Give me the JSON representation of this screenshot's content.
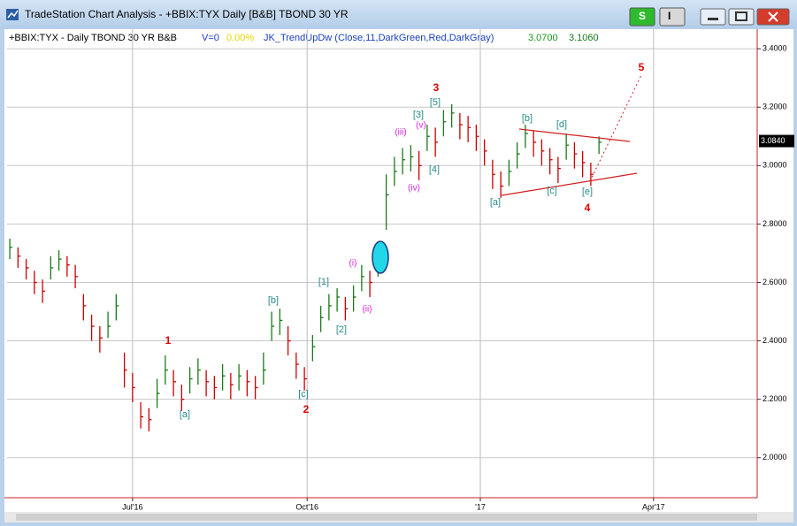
{
  "window": {
    "title": "TradeStation Chart Analysis - +BBIX:TYX Daily [B&B] TBOND 30 YR",
    "buttons": [
      "S",
      "I"
    ]
  },
  "chart_data": {
    "type": "ohlc",
    "info": {
      "symbol": "+BBIX:TYX - Daily  TBOND 30 YR  B&B",
      "volume": "V=0",
      "change": "0.00%",
      "indicator": "JK_TrendUpDw (Close,11,DarkGreen,Red,DarkGray)",
      "indicator_value_1": "3.0700",
      "indicator_value_2": "3.1060"
    },
    "x": [
      1,
      4,
      7,
      10,
      13,
      16,
      19,
      22,
      25,
      28,
      31,
      34,
      37,
      40,
      43,
      46,
      49,
      52,
      55,
      58,
      61,
      64,
      67,
      70,
      73,
      76,
      79,
      82,
      85,
      88,
      91,
      94,
      97,
      100,
      103,
      106,
      109,
      112,
      115,
      118,
      121,
      124,
      127,
      130,
      133,
      136,
      139,
      142,
      145,
      148,
      151,
      154,
      157,
      160,
      163,
      166,
      169,
      172,
      175,
      178,
      181,
      184,
      187,
      190,
      193,
      196,
      199,
      202,
      205,
      208,
      211,
      214,
      217
    ],
    "high": [
      2.75,
      2.72,
      2.68,
      2.64,
      2.61,
      2.69,
      2.71,
      2.69,
      2.66,
      2.56,
      2.49,
      2.45,
      2.5,
      2.56,
      2.36,
      2.29,
      2.19,
      2.17,
      2.27,
      2.35,
      2.3,
      2.25,
      2.31,
      2.34,
      2.3,
      2.28,
      2.32,
      2.29,
      2.32,
      2.3,
      2.28,
      2.36,
      2.5,
      2.51,
      2.45,
      2.36,
      2.31,
      2.42,
      2.52,
      2.56,
      2.58,
      2.55,
      2.59,
      2.66,
      2.64,
      2.74,
      2.97,
      3.03,
      3.06,
      3.07,
      3.05,
      3.14,
      3.13,
      3.19,
      3.21,
      3.18,
      3.17,
      3.14,
      3.09,
      3.02,
      2.98,
      3.02,
      3.08,
      3.14,
      3.12,
      3.09,
      3.06,
      3.03,
      3.11,
      3.08,
      3.05,
      3.01,
      3.1
    ],
    "low": [
      2.68,
      2.65,
      2.61,
      2.56,
      2.53,
      2.61,
      2.64,
      2.62,
      2.58,
      2.47,
      2.4,
      2.36,
      2.41,
      2.47,
      2.24,
      2.19,
      2.1,
      2.09,
      2.17,
      2.25,
      2.21,
      2.16,
      2.22,
      2.25,
      2.21,
      2.2,
      2.23,
      2.2,
      2.23,
      2.21,
      2.2,
      2.25,
      2.4,
      2.42,
      2.35,
      2.27,
      2.23,
      2.33,
      2.43,
      2.47,
      2.5,
      2.47,
      2.5,
      2.57,
      2.55,
      2.62,
      2.78,
      2.93,
      2.97,
      2.98,
      2.95,
      3.05,
      3.03,
      3.1,
      3.13,
      3.09,
      3.08,
      3.05,
      3.0,
      2.92,
      2.89,
      2.93,
      2.99,
      3.06,
      3.03,
      3.0,
      2.97,
      2.94,
      3.02,
      2.99,
      2.96,
      2.93,
      3.04
    ],
    "close": [
      2.72,
      2.69,
      2.65,
      2.6,
      2.57,
      2.65,
      2.68,
      2.66,
      2.62,
      2.52,
      2.45,
      2.41,
      2.45,
      2.52,
      2.3,
      2.24,
      2.14,
      2.13,
      2.22,
      2.3,
      2.26,
      2.2,
      2.27,
      2.3,
      2.26,
      2.24,
      2.28,
      2.25,
      2.28,
      2.26,
      2.24,
      2.3,
      2.45,
      2.47,
      2.4,
      2.32,
      2.27,
      2.38,
      2.48,
      2.52,
      2.55,
      2.51,
      2.55,
      2.62,
      2.6,
      2.68,
      2.9,
      2.98,
      3.02,
      3.03,
      3.0,
      3.1,
      3.08,
      3.15,
      3.18,
      3.14,
      3.13,
      3.1,
      3.05,
      2.97,
      2.93,
      2.98,
      3.04,
      3.11,
      3.08,
      3.05,
      3.02,
      2.99,
      3.07,
      3.04,
      3.01,
      2.97,
      3.08
    ],
    "up_color": "#1a7a1a",
    "down_color": "#cc0000",
    "xlim": [
      0,
      275
    ],
    "xticks": [
      {
        "value": 46,
        "label": "Jul'16"
      },
      {
        "value": 110,
        "label": "Oct'16"
      },
      {
        "value": 173.5,
        "label": "'17"
      },
      {
        "value": 237,
        "label": "Apr'17"
      }
    ],
    "ylim": [
      1.863,
      3.467
    ],
    "yticks": [
      {
        "value": 2.0,
        "label": "2.0000"
      },
      {
        "value": 2.2,
        "label": "2.2000"
      },
      {
        "value": 2.4,
        "label": "2.4000"
      },
      {
        "value": 2.6,
        "label": "2.6000"
      },
      {
        "value": 2.8,
        "label": "2.8000"
      },
      {
        "value": 3.0,
        "label": "3.0000"
      },
      {
        "value": 3.2,
        "label": "3.2000"
      },
      {
        "value": 3.4,
        "label": "3.4000"
      }
    ],
    "last_price": {
      "value": 3.084,
      "label": "3.0840"
    },
    "grid": true,
    "annotations": [
      {
        "text": "3",
        "color": "#dd0000"
      },
      {
        "text": "[5]",
        "color": "#2a8a8a"
      },
      {
        "text": "[3]",
        "color": "#2a8a8a"
      },
      {
        "text": "(v)",
        "color": "#dd22dd"
      },
      {
        "text": "(iii)",
        "color": "#dd22dd"
      },
      {
        "text": "[4]",
        "color": "#2a8a8a"
      },
      {
        "text": "(iv)",
        "color": "#dd22dd"
      },
      {
        "text": "[b]",
        "color": "#2a8a8a"
      },
      {
        "text": "[d]",
        "color": "#2a8a8a"
      },
      {
        "text": "[c]",
        "color": "#2a8a8a"
      },
      {
        "text": "[a]",
        "color": "#2a8a8a"
      },
      {
        "text": "[e]",
        "color": "#2a8a8a"
      },
      {
        "text": "4",
        "color": "#dd0000"
      },
      {
        "text": "5",
        "color": "#dd0000"
      },
      {
        "text": "1",
        "color": "#dd0000"
      },
      {
        "text": "[a]",
        "color": "#2a8a8a"
      },
      {
        "text": "[b]",
        "color": "#2a8a8a"
      },
      {
        "text": "[c]",
        "color": "#2a8a8a"
      },
      {
        "text": "2",
        "color": "#dd0000"
      },
      {
        "text": "[1]",
        "color": "#2a8a8a"
      },
      {
        "text": "[2]",
        "color": "#2a8a8a"
      },
      {
        "text": "(i)",
        "color": "#dd22dd"
      },
      {
        "text": "(ii)",
        "color": "#dd22dd"
      }
    ]
  }
}
